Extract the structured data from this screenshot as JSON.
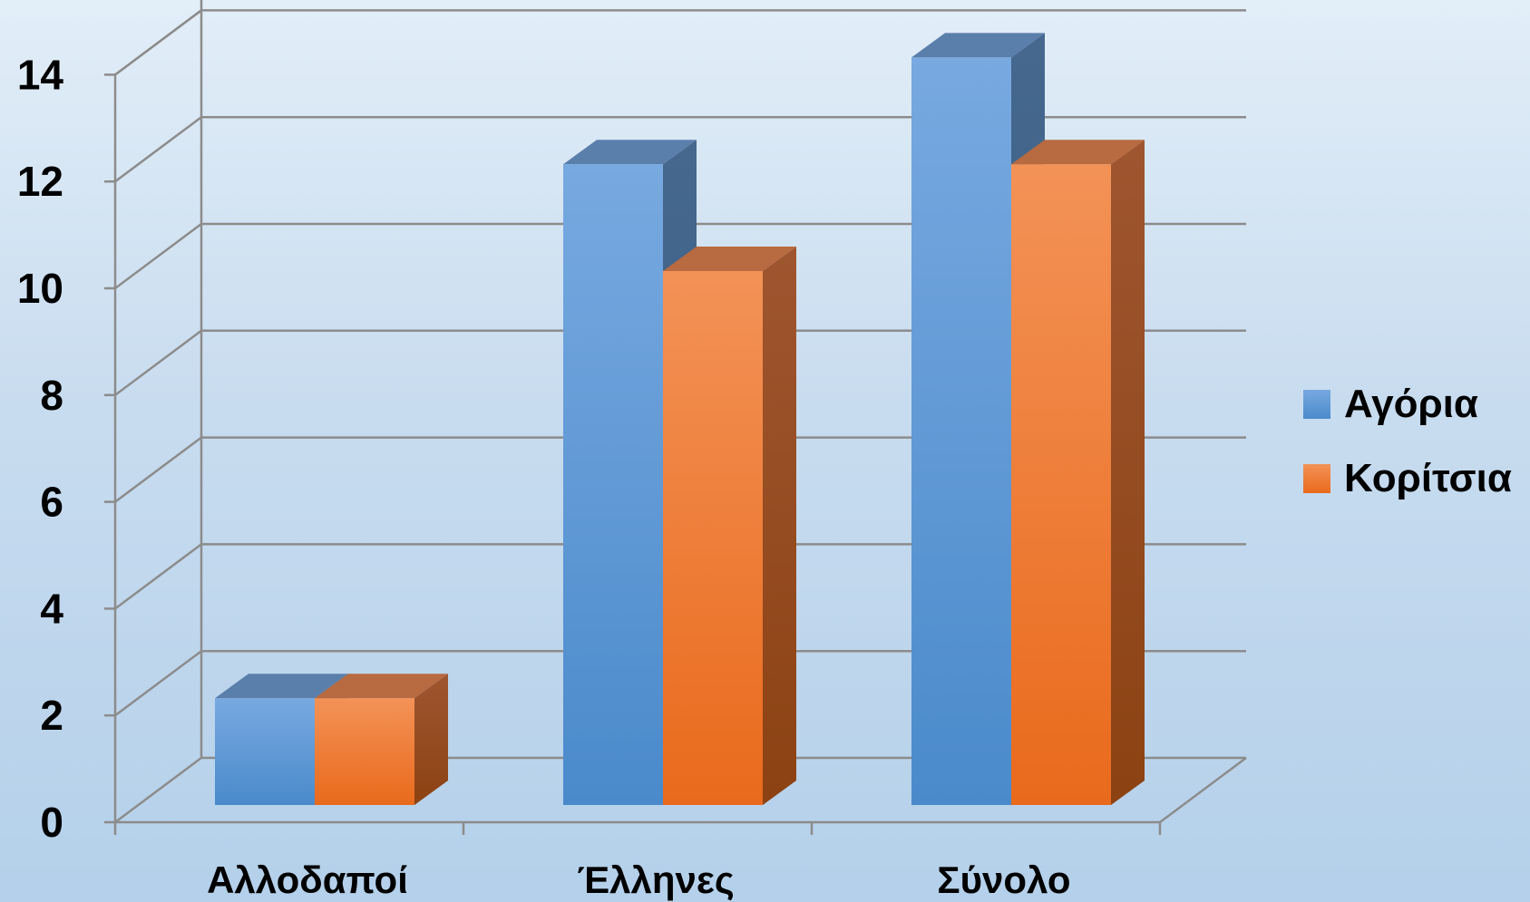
{
  "chart_data": {
    "type": "bar",
    "style": "3d-clustered-column",
    "categories": [
      "Αλλοδαποί",
      "Έλληνες",
      "Σύνολο"
    ],
    "series": [
      {
        "name": "Αγόρια",
        "values": [
          2,
          12,
          14
        ],
        "color": "#5b9bd5"
      },
      {
        "name": "Κορίτσια",
        "values": [
          2,
          10,
          12
        ],
        "color": "#f07f2e"
      }
    ],
    "y_ticks": [
      "0",
      "2",
      "4",
      "6",
      "8",
      "10",
      "12",
      "14"
    ],
    "ylim": [
      0,
      14
    ],
    "grid": true,
    "legend_position": "right",
    "title": "",
    "xlabel": "",
    "ylabel": ""
  }
}
